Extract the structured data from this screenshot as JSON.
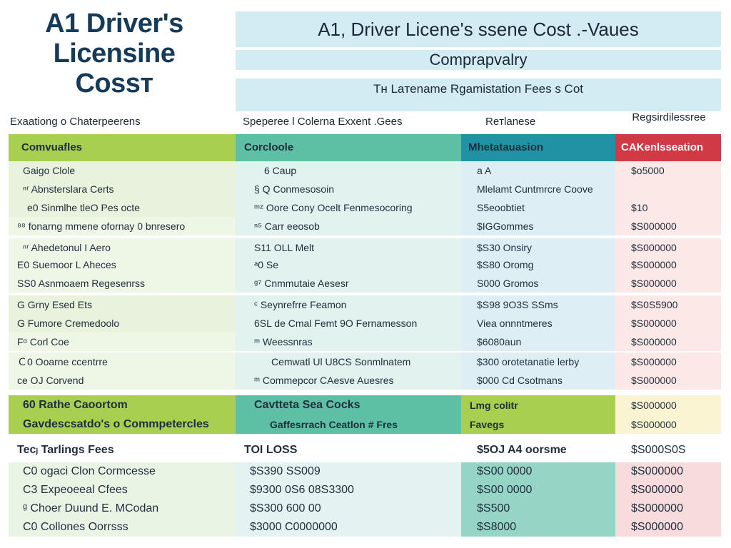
{
  "title": {
    "line1": "A1 Driver's",
    "line2": "Licensine",
    "line3": "Cossт"
  },
  "header": {
    "main": "A1, Driver Licene's ssene Cost .-Vaues",
    "sub": "Comprарvalry",
    "section": "Tн Laтename Rgamistation Fees s Cot"
  },
  "column_captions": [
    "Exaationg o Chaterpeerens",
    "Speperee l Colerna Exxent .Gees",
    "Reтlanese",
    "Regsirdilessree"
  ],
  "table_header": [
    "Comvuafles",
    "Corcloole",
    "Mhetatauasion",
    "CAKenlsseation"
  ],
  "rows": [
    [
      "Gaigo Clole",
      "6 Caup",
      "a A",
      "$o5000"
    ],
    [
      "ⁿʳ Abnsterslara Certs",
      "§ Q Conmesosoin",
      "Mlelamt Cuntmrcre Coove",
      ""
    ],
    [
      "e0 Sinmlhe tleO Pes octe",
      "ᵐᶻ Oore Cony Ocelt Fenmesocoring",
      "S5eoobtiet",
      "$10"
    ],
    [
      "⁸⁸ fonarng mmene ofornay 0 bnresero",
      "ⁿ⁵ Carr eeosob",
      "$IGGommes",
      "$S000000"
    ],
    [
      "ⁿʳ Ahedetonul I Aero",
      "S11 OLL Melt",
      "$S30 Onsiry",
      "$S000000"
    ],
    [
      "E0 Suemoor L Aheces",
      "ᵃ0 Se",
      "$S80 Oromg",
      "$S000000"
    ],
    [
      "SS0 Asnmoaem Regesenrss",
      "ᵍ⁷ Cnmmutaie Aesesr",
      "S000 Gromos",
      "$S000000"
    ],
    [
      "G Grny Esed Ets",
      "ᶜ Seynrefrre Feamon",
      "$S98 9O3S SSms",
      "$S0S5900"
    ],
    [
      "G Fumore Cremedoolo",
      "6SL de Cmal Femt 9O Fernamesson",
      "Viea onnntmeres",
      "$S000000"
    ],
    [
      "Fᵅ Corl Coe",
      "ᵐ Weessnras",
      "$6080aun",
      "$S000000"
    ],
    [
      "Ｃ0 Ooarne ccentrre",
      "Cemwatl Ul U8CS Sonmlnatem",
      "$300 orotetanatie lerby",
      "$S000000"
    ],
    [
      "ce OJ Corvend",
      "ᵐ Commepcor CAesve Auesres",
      "$000 Cd Csotmans",
      "$S000000"
    ]
  ],
  "highlight_rows": [
    [
      "60 Rathe Caoortom",
      "Cavtteta Sea Cocks",
      "Lmg colitr",
      "$S000000"
    ],
    [
      "Gavdescsatdo's o Commpetercles",
      "Gaffesrrach Ceatlon # Fres",
      "Favegs",
      "$S000000"
    ]
  ],
  "total_row": [
    "Tecⱼ Tarlings Fees",
    "TOI LOSS",
    "$5OJ A4 oorsme",
    "$S000S0S"
  ],
  "bottom_rows": [
    [
      "C0 ogaci Clon Cormcesse",
      "$S390 SS009",
      "$S00 0000",
      "$S000000"
    ],
    [
      "C3 Expeoeeal Cfees",
      "$9300 0S6 08S3300",
      "$S00 0000",
      "$S000000"
    ],
    [
      "ᵍ Choer Duund E. MCodan",
      "$S300 600 00",
      "$S500",
      "$S000000"
    ],
    [
      "C0 Collones Oorrsss",
      "$3000 C0000000",
      "$S8000",
      "$S000000"
    ]
  ],
  "colors": {
    "header_band": "#d3ecf3",
    "green": "#a9cf50",
    "teal": "#5dbfa3",
    "blue": "#1f93a3",
    "red": "#cf3a44"
  }
}
